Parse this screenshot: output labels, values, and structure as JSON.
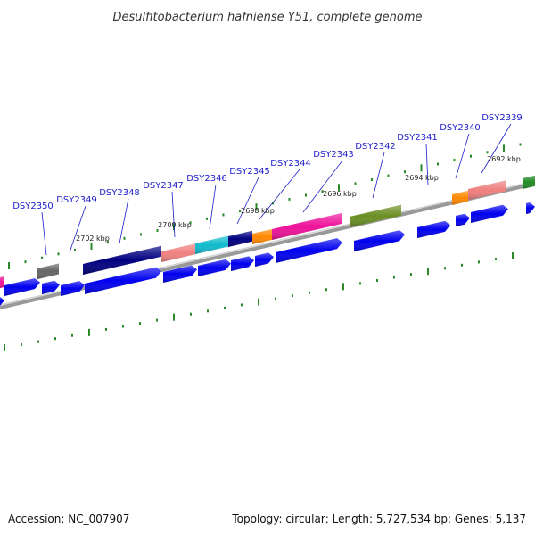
{
  "title": "Desulfitobacterium hafniense Y51, complete genome",
  "footer": {
    "accession": "Accession: NC_007907",
    "topology": "Topology: circular; Length: 5,727,534 bp; Genes: 5,137"
  },
  "gene_labels": [
    "DSY2350",
    "DSY2349",
    "DSY2348",
    "DSY2347",
    "DSY2346",
    "DSY2345",
    "DSY2344",
    "DSY2343",
    "DSY2342",
    "DSY2341",
    "DSY2340",
    "DSY2339"
  ],
  "kbp_labels": [
    "2702 kbp",
    "2700 kbp",
    "2698 kbp",
    "2696 kbp",
    "2694 kbp",
    "2692 kbp"
  ],
  "colors": {
    "gene_blue": "#0000ee",
    "backbone": "#888888",
    "tick_green": "#2a8a2a",
    "label_blue": "#1c1ccc",
    "pink": "#ee1199",
    "salmon": "#f08080",
    "cyan": "#11bbcc",
    "orange": "#ff8800",
    "olive": "#6b8e23",
    "gray": "#666666",
    "navy": "#000080"
  }
}
